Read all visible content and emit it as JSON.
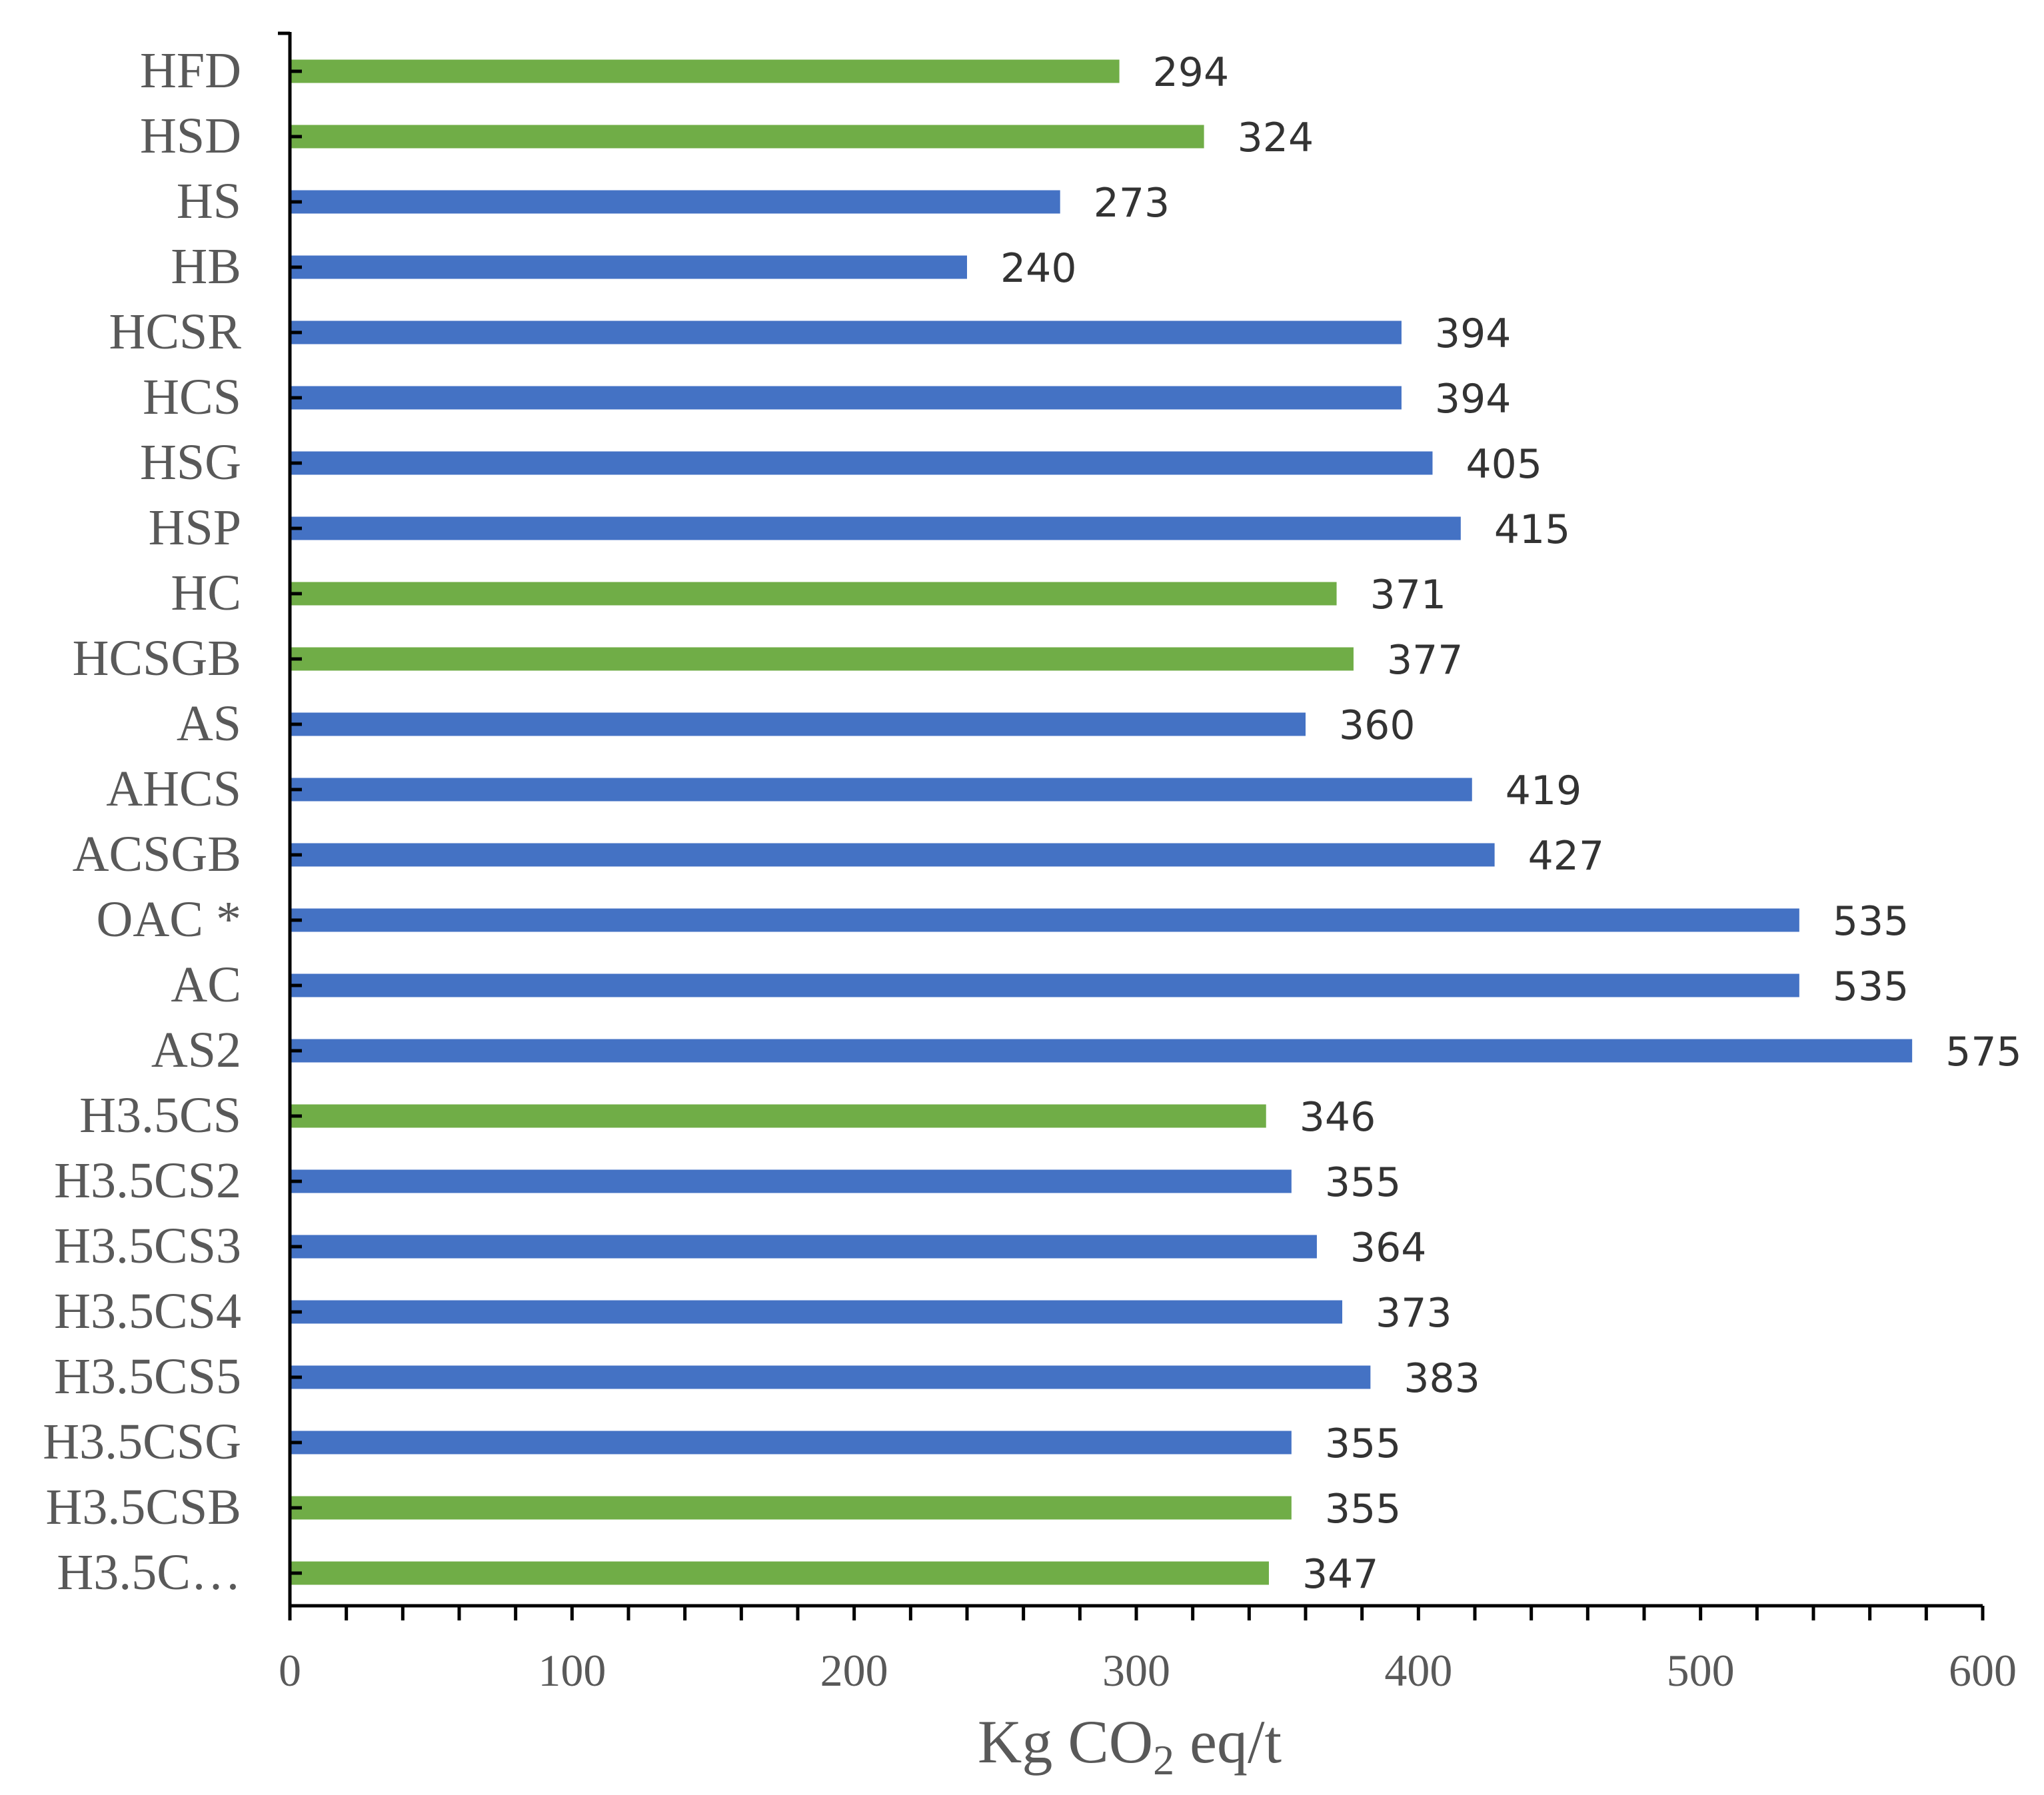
{
  "chart_data": {
    "type": "bar",
    "orientation": "horizontal",
    "title": "",
    "xlabel_main": "Kg CO",
    "xlabel_sub": "2",
    "xlabel_tail": " eq/t",
    "ylabel": "",
    "xlim": [
      0,
      600
    ],
    "x_major_ticks": [
      0,
      100,
      200,
      300,
      400,
      500,
      600
    ],
    "x_minor_tick_step": 20,
    "grid": false,
    "legend": "none",
    "colors": {
      "blue": "#4472C4",
      "green": "#70AD47"
    },
    "bars": [
      {
        "label": "HFD",
        "value": 294,
        "value_label": "294",
        "color": "green"
      },
      {
        "label": "HSD",
        "value": 324,
        "value_label": "324",
        "color": "green"
      },
      {
        "label": "HS",
        "value": 273,
        "value_label": "273",
        "color": "blue"
      },
      {
        "label": "HB",
        "value": 240,
        "value_label": "240",
        "color": "blue"
      },
      {
        "label": "HCSR",
        "value": 394,
        "value_label": "394",
        "color": "blue"
      },
      {
        "label": "HCS",
        "value": 394,
        "value_label": "394",
        "color": "blue"
      },
      {
        "label": "HSG",
        "value": 405,
        "value_label": "405",
        "color": "blue"
      },
      {
        "label": "HSP",
        "value": 415,
        "value_label": "415",
        "color": "blue"
      },
      {
        "label": "HC",
        "value": 371,
        "value_label": "371",
        "color": "green"
      },
      {
        "label": "HCSGB",
        "value": 377,
        "value_label": "377",
        "color": "green"
      },
      {
        "label": "AS",
        "value": 360,
        "value_label": "360",
        "color": "blue"
      },
      {
        "label": "AHCS",
        "value": 419,
        "value_label": "419",
        "color": "blue"
      },
      {
        "label": "ACSGB",
        "value": 427,
        "value_label": "427",
        "color": "blue"
      },
      {
        "label": "OAC *",
        "value": 535,
        "value_label": "535",
        "color": "blue"
      },
      {
        "label": "AC",
        "value": 535,
        "value_label": "535",
        "color": "blue"
      },
      {
        "label": "AS2",
        "value": 575,
        "value_label": "575",
        "color": "blue"
      },
      {
        "label": "H3.5CS",
        "value": 346,
        "value_label": "346",
        "color": "green"
      },
      {
        "label": "H3.5CS2",
        "value": 355,
        "value_label": "355",
        "color": "blue"
      },
      {
        "label": "H3.5CS3",
        "value": 364,
        "value_label": "364",
        "color": "blue"
      },
      {
        "label": "H3.5CS4",
        "value": 373,
        "value_label": "373",
        "color": "blue"
      },
      {
        "label": "H3.5CS5",
        "value": 383,
        "value_label": "383",
        "color": "blue"
      },
      {
        "label": "H3.5CSG",
        "value": 355,
        "value_label": "355",
        "color": "blue"
      },
      {
        "label": "H3.5CSB",
        "value": 355,
        "value_label": "355",
        "color": "green"
      },
      {
        "label": "H3.5C…",
        "value": 347,
        "value_label": "347",
        "color": "green"
      }
    ]
  }
}
